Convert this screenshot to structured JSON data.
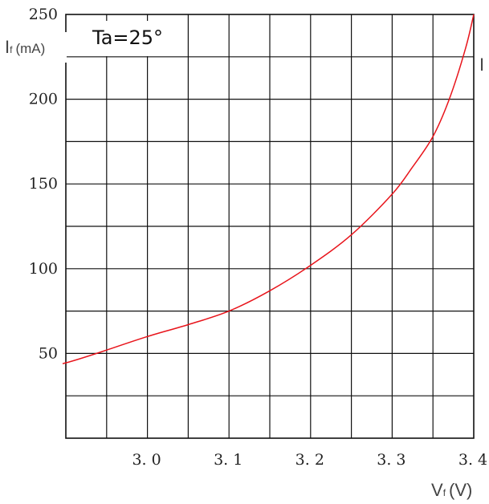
{
  "chart_data": {
    "type": "line",
    "title": "",
    "annotation": "Ta=25°",
    "ylabel": {
      "main": "I",
      "sub": "f",
      "unit": "(mA)"
    },
    "xlabel": {
      "main": "V",
      "sub": "f",
      "unit": "(V)"
    },
    "clipped_label": "I",
    "xlim": [
      2.9,
      3.4
    ],
    "ylim": [
      0,
      250
    ],
    "x_ticks": [
      3.0,
      3.1,
      3.2,
      3.3,
      3.4
    ],
    "x_tick_labels": [
      "3. 0",
      "3. 1",
      "3. 2",
      "3. 3",
      "3. 4"
    ],
    "y_ticks": [
      50,
      100,
      150,
      200,
      250
    ],
    "y_tick_labels": [
      "50",
      "100",
      "150",
      "200",
      "250"
    ],
    "grid": true,
    "series": [
      {
        "color": "#e8141b",
        "x": [
          2.9,
          2.95,
          3.0,
          3.05,
          3.1,
          3.15,
          3.2,
          3.25,
          3.3,
          3.325,
          3.35,
          3.37,
          3.39,
          3.4
        ],
        "y": [
          44,
          52,
          60,
          67,
          75,
          87,
          102,
          120,
          144,
          160,
          178,
          200,
          230,
          250
        ]
      }
    ]
  }
}
